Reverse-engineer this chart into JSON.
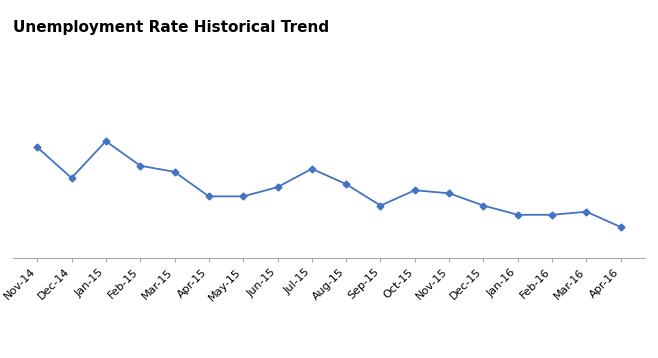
{
  "title": "Unemployment Rate Historical Trend",
  "title_fontsize": 11,
  "title_fontweight": "bold",
  "labels": [
    "Nov-14",
    "Dec-14",
    "Jan-15",
    "Feb-15",
    "Mar-15",
    "Apr-15",
    "May-15",
    "Jun-15",
    "Jul-15",
    "Aug-15",
    "Sep-15",
    "Oct-15",
    "Nov-15",
    "Dec-15",
    "Jan-16",
    "Feb-16",
    "Mar-16",
    "Apr-16"
  ],
  "values": [
    5.8,
    5.3,
    5.9,
    5.5,
    5.4,
    5.0,
    5.0,
    5.15,
    5.45,
    5.2,
    4.85,
    5.1,
    5.05,
    4.85,
    4.7,
    4.7,
    4.75,
    4.5
  ],
  "line_color": "#4472C4",
  "marker": "D",
  "marker_size": 3.5,
  "line_width": 1.3,
  "ylim_min": 4.0,
  "ylim_max": 7.5,
  "ytick_positions": [
    4.0,
    4.5,
    5.0,
    5.5,
    6.0,
    6.5,
    7.0,
    7.5
  ],
  "grid_color": "#BBBBBB",
  "grid_linewidth": 0.7,
  "background_color": "#FFFFFF",
  "tick_labelsize": 8
}
